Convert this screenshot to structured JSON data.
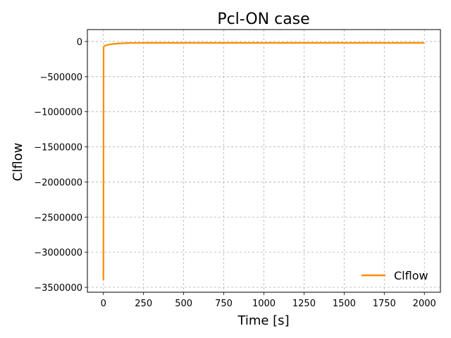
{
  "chart_data": {
    "type": "line",
    "title": "Pcl-ON case",
    "xlabel": "Time [s]",
    "ylabel": "Clflow",
    "xlim": [
      -100,
      2100
    ],
    "ylim": [
      -3570000,
      170000
    ],
    "xticks": [
      0,
      250,
      500,
      750,
      1000,
      1250,
      1500,
      1750,
      2000
    ],
    "xtick_labels": [
      "0",
      "250",
      "500",
      "750",
      "1000",
      "1250",
      "1500",
      "1750",
      "2000"
    ],
    "yticks": [
      0,
      -500000,
      -1000000,
      -1500000,
      -2000000,
      -2500000,
      -3000000,
      -3500000
    ],
    "ytick_labels": [
      "0",
      "−500000",
      "−1000000",
      "−1500000",
      "−2000000",
      "−2500000",
      "−3000000",
      "−3500000"
    ],
    "grid": true,
    "legend_position": "lower-right",
    "series": [
      {
        "name": "Clflow",
        "color": "#ff8c00",
        "x": [
          0,
          1,
          2,
          5,
          10,
          20,
          30,
          50,
          75,
          100,
          150,
          200,
          300,
          500,
          1000,
          1500,
          2000
        ],
        "y": [
          -3400000,
          -80000,
          -72000,
          -66000,
          -60000,
          -52000,
          -46000,
          -38000,
          -32000,
          -27000,
          -22000,
          -20000,
          -19000,
          -19000,
          -19000,
          -19000,
          -19000
        ]
      }
    ]
  }
}
